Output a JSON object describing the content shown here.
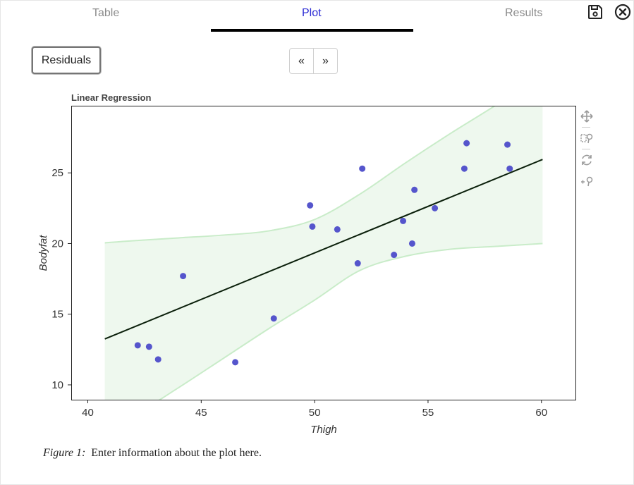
{
  "tabs": [
    {
      "label": "Table",
      "active": false
    },
    {
      "label": "Plot",
      "active": true
    },
    {
      "label": "Results",
      "active": false
    }
  ],
  "header_icons": [
    "save-icon",
    "close-icon"
  ],
  "controls": {
    "residuals_label": "Residuals",
    "prev_label": "«",
    "next_label": "»"
  },
  "toolbar_icons": [
    "pan-icon",
    "box-zoom-icon",
    "reset-icon",
    "wheel-zoom-icon"
  ],
  "caption": {
    "figure_label": "Figure 1:",
    "text": "Enter information about the plot here."
  },
  "colors": {
    "active_tab": "#2a2ad4",
    "points": "#5555cc",
    "band_fill": "#eef8ee",
    "band_edge": "#c9ecc9",
    "fit_line": "#0a1f0a"
  },
  "chart_data": {
    "type": "scatter",
    "title": "Linear Regression",
    "xlabel": "Thigh",
    "ylabel": "Bodyfat",
    "xlim": [
      39.3,
      61.5
    ],
    "ylim": [
      8.95,
      29.7
    ],
    "xticks": [
      40,
      45,
      50,
      55,
      60
    ],
    "yticks": [
      10,
      15,
      20,
      25
    ],
    "grid": false,
    "points": [
      {
        "x": 42.2,
        "y": 12.8
      },
      {
        "x": 42.7,
        "y": 12.7
      },
      {
        "x": 43.1,
        "y": 11.8
      },
      {
        "x": 44.2,
        "y": 17.7
      },
      {
        "x": 46.5,
        "y": 11.6
      },
      {
        "x": 48.2,
        "y": 14.7
      },
      {
        "x": 49.8,
        "y": 22.7
      },
      {
        "x": 49.9,
        "y": 21.2
      },
      {
        "x": 51.0,
        "y": 21.0
      },
      {
        "x": 51.9,
        "y": 18.6
      },
      {
        "x": 52.1,
        "y": 25.3
      },
      {
        "x": 53.5,
        "y": 19.2
      },
      {
        "x": 53.9,
        "y": 21.6
      },
      {
        "x": 54.3,
        "y": 20.0
      },
      {
        "x": 54.4,
        "y": 23.8
      },
      {
        "x": 55.3,
        "y": 22.5
      },
      {
        "x": 56.6,
        "y": 25.3
      },
      {
        "x": 56.7,
        "y": 27.1
      },
      {
        "x": 58.5,
        "y": 27.0
      },
      {
        "x": 58.6,
        "y": 25.3
      }
    ],
    "fit_line": {
      "x": [
        40.75,
        60.05
      ],
      "y": [
        13.25,
        25.95
      ]
    },
    "confidence_band": {
      "x": [
        40.75,
        42,
        44,
        46,
        48,
        50,
        52,
        54,
        56,
        58,
        60.05
      ],
      "upper": [
        20.05,
        20.2,
        20.4,
        20.6,
        20.9,
        21.7,
        23.5,
        25.7,
        27.8,
        29.8,
        32.0
      ],
      "lower": [
        7.0,
        7.8,
        9.8,
        11.9,
        14.0,
        16.0,
        18.1,
        19.1,
        19.6,
        19.8,
        20.0
      ]
    }
  }
}
